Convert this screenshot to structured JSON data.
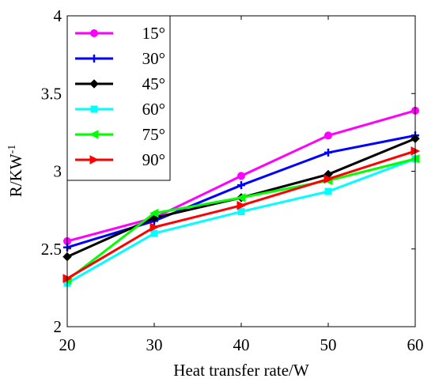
{
  "chart_data": {
    "type": "line",
    "title": "",
    "xlabel": "Heat transfer rate/W",
    "ylabel": "R/K",
    "ylabel_unit_main": "W",
    "ylabel_unit_exp": "-1",
    "x": [
      20,
      30,
      40,
      50,
      60
    ],
    "xlim": [
      20,
      60
    ],
    "ylim": [
      2,
      4
    ],
    "xticks": [
      "20",
      "30",
      "40",
      "50",
      "60"
    ],
    "yticks": [
      "2",
      "2.5",
      "3",
      "3.5",
      "4"
    ],
    "grid": false,
    "legend_position": "top-left",
    "series": [
      {
        "name": "15°",
        "color": "#ff00ff",
        "marker": "circle",
        "values": [
          2.55,
          2.7,
          2.97,
          3.23,
          3.39
        ]
      },
      {
        "name": "30°",
        "color": "#0000ff",
        "marker": "plus",
        "values": [
          2.51,
          2.68,
          2.91,
          3.12,
          3.23
        ]
      },
      {
        "name": "45°",
        "color": "#000000",
        "marker": "diamond",
        "values": [
          2.45,
          2.7,
          2.83,
          2.98,
          3.21
        ]
      },
      {
        "name": "60°",
        "color": "#00ffff",
        "marker": "square",
        "values": [
          2.28,
          2.6,
          2.74,
          2.87,
          3.08
        ]
      },
      {
        "name": "75°",
        "color": "#00ff00",
        "marker": "triangle-left",
        "values": [
          2.3,
          2.73,
          2.83,
          2.94,
          3.08
        ]
      },
      {
        "name": "90°",
        "color": "#ff0000",
        "marker": "triangle-right",
        "values": [
          2.31,
          2.64,
          2.78,
          2.95,
          3.13
        ]
      }
    ]
  }
}
